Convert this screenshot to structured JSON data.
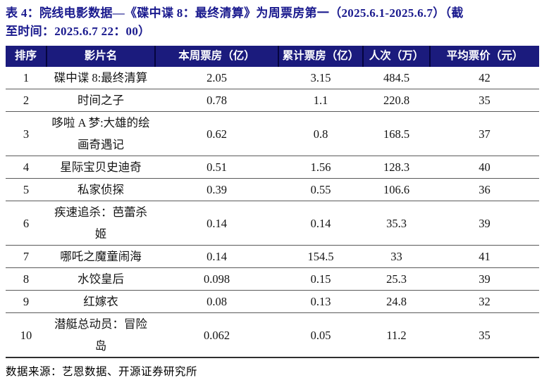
{
  "title": {
    "line1": "表 4：院线电影数据—《碟中谍 8：最终清算》为周票房第一（2025.6.1-2025.6.7）（截",
    "line2": "至时间：2025.6.7 22：00）"
  },
  "table": {
    "columns": [
      {
        "label": "排序"
      },
      {
        "label": "影片名"
      },
      {
        "label": "本周票房（亿）"
      },
      {
        "label": "累计票房（亿）"
      },
      {
        "label": "人次（万）"
      },
      {
        "label": "平均票价（元）"
      }
    ],
    "rows": [
      [
        "1",
        "碟中谍 8:最终清算",
        "2.05",
        "3.15",
        "484.5",
        "42"
      ],
      [
        "2",
        "时间之子",
        "0.78",
        "1.1",
        "220.8",
        "35"
      ],
      [
        "3",
        "哆啦 A 梦:大雄的绘画奇遇记",
        "0.62",
        "0.8",
        "168.5",
        "37"
      ],
      [
        "4",
        "星际宝贝史迪奇",
        "0.51",
        "1.56",
        "128.3",
        "40"
      ],
      [
        "5",
        "私家侦探",
        "0.39",
        "0.55",
        "106.6",
        "36"
      ],
      [
        "6",
        "疾速追杀：芭蕾杀姬",
        "0.14",
        "0.14",
        "35.3",
        "39"
      ],
      [
        "7",
        "哪吒之魔童闹海",
        "0.14",
        "154.5",
        "33",
        "41"
      ],
      [
        "8",
        "水饺皇后",
        "0.098",
        "0.15",
        "25.3",
        "39"
      ],
      [
        "9",
        "红嫁衣",
        "0.08",
        "0.13",
        "24.8",
        "32"
      ],
      [
        "10",
        "潜艇总动员：冒险岛",
        "0.062",
        "0.05",
        "11.2",
        "35"
      ]
    ]
  },
  "footer": {
    "source": "数据来源：艺恩数据、开源证券研究所"
  },
  "colors": {
    "title_text": "#1a1a8e",
    "header_bg": "#1b1b7d",
    "header_text": "#ffffff",
    "row_border": "#5a5a5a",
    "bottom_border": "#2f2f2f"
  }
}
